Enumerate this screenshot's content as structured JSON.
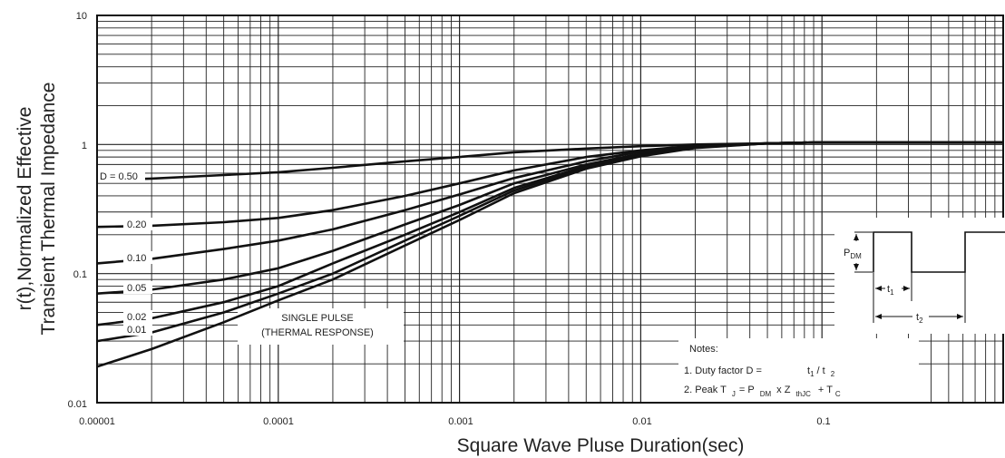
{
  "chart_data": {
    "type": "line",
    "xscale": "log",
    "yscale": "log",
    "xlim": [
      1e-05,
      1
    ],
    "ylim": [
      0.01,
      10
    ],
    "grid": true,
    "xlabel": "Square Wave Pluse Duration(sec)",
    "ylabel": [
      "r(t),Normalized Effective",
      "Transient Thermal Impedance"
    ],
    "xticks": [
      "0.00001",
      "0.0001",
      "0.001",
      "0.01",
      "0.1"
    ],
    "yticks": [
      "10",
      "1",
      "0.1",
      "0.01"
    ],
    "x": [
      1e-05,
      2e-05,
      5e-05,
      0.0001,
      0.0002,
      0.0005,
      0.001,
      0.002,
      0.005,
      0.01,
      0.02,
      0.05,
      0.1,
      1
    ],
    "series": [
      {
        "name": "D = 0.50",
        "values": [
          0.53,
          0.545,
          0.58,
          0.61,
          0.66,
          0.74,
          0.8,
          0.87,
          0.93,
          0.97,
          1.0,
          1.02,
          1.04,
          1.04
        ]
      },
      {
        "name": "0.20",
        "values": [
          0.23,
          0.235,
          0.25,
          0.27,
          0.31,
          0.4,
          0.5,
          0.63,
          0.8,
          0.9,
          0.98,
          1.02,
          1.04,
          1.04
        ]
      },
      {
        "name": "0.10",
        "values": [
          0.12,
          0.13,
          0.155,
          0.18,
          0.22,
          0.31,
          0.41,
          0.55,
          0.74,
          0.88,
          0.97,
          1.02,
          1.04,
          1.04
        ]
      },
      {
        "name": "0.05",
        "values": [
          0.07,
          0.075,
          0.09,
          0.11,
          0.15,
          0.24,
          0.34,
          0.5,
          0.7,
          0.85,
          0.96,
          1.02,
          1.04,
          1.04
        ]
      },
      {
        "name": "0.02",
        "values": [
          0.04,
          0.045,
          0.06,
          0.08,
          0.12,
          0.2,
          0.3,
          0.46,
          0.68,
          0.83,
          0.95,
          1.02,
          1.04,
          1.04
        ]
      },
      {
        "name": "0.01",
        "values": [
          0.03,
          0.035,
          0.05,
          0.07,
          0.1,
          0.18,
          0.28,
          0.44,
          0.67,
          0.82,
          0.95,
          1.02,
          1.04,
          1.04
        ]
      },
      {
        "name": "SINGLE PULSE (THERMAL RESPONSE)",
        "values": [
          0.019,
          0.026,
          0.042,
          0.062,
          0.09,
          0.165,
          0.26,
          0.42,
          0.65,
          0.81,
          0.94,
          1.02,
          1.04,
          1.04
        ]
      }
    ],
    "annotations": {
      "single_pulse_1": "SINGLE PULSE",
      "single_pulse_2": "(THERMAL RESPONSE)",
      "notes_title": "Notes:",
      "note1_prefix": "1. Duty factor D =",
      "note1_t1": "t",
      "note1_t1_sub": "1",
      "note1_slash": "/ t",
      "note1_t2_sub": "2",
      "note2_prefix": "2. Peak T",
      "note2_j": "J",
      "note2_eq": "= P",
      "note2_dm": "DM",
      "note2_x": "x Z",
      "note2_thjc": "thJC",
      "note2_plus": "+ T",
      "note2_c": "C",
      "waveform_p": "P",
      "waveform_dm": "DM",
      "waveform_t1": "t",
      "waveform_t1_sub": "1",
      "waveform_t2": "t",
      "waveform_t2_sub": "2"
    }
  }
}
